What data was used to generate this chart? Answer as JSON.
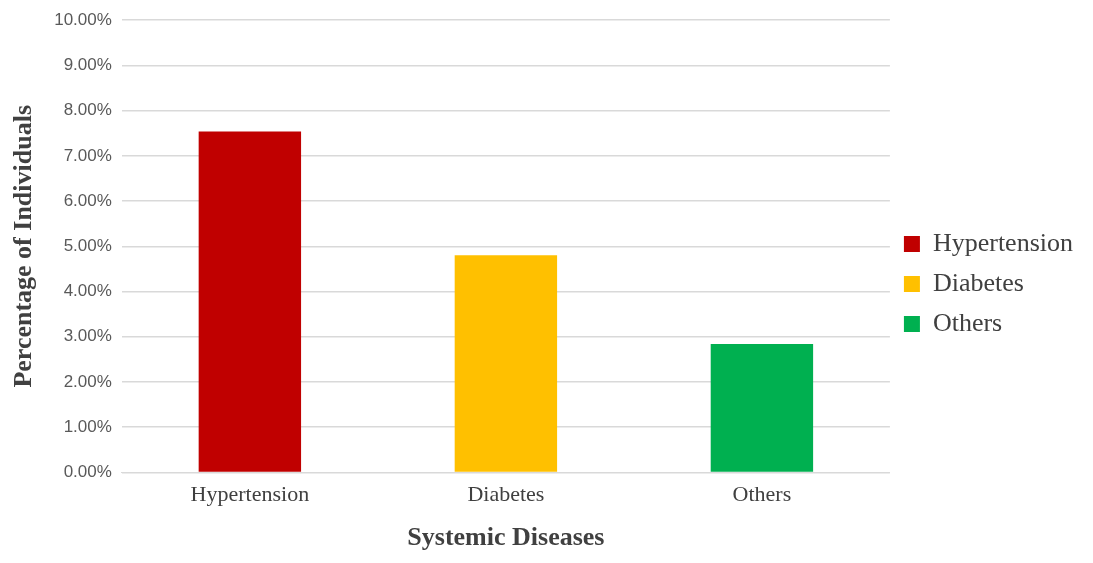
{
  "chart_data": {
    "type": "bar",
    "xlabel": "Systemic Diseases",
    "ylabel": "Percentage of Individuals",
    "categories": [
      "Hypertension",
      "Diabetes",
      "Others"
    ],
    "series": [
      {
        "name": "Hypertension",
        "color": "#c00000",
        "values": [
          7.54,
          null,
          null
        ]
      },
      {
        "name": "Diabetes",
        "color": "#ffc000",
        "values": [
          null,
          4.8,
          null
        ]
      },
      {
        "name": "Others",
        "color": "#00b050",
        "values": [
          null,
          null,
          2.84
        ]
      }
    ],
    "ylim": [
      0,
      10
    ],
    "yticks": [
      {
        "value": 0,
        "label": "0.00%"
      },
      {
        "value": 1,
        "label": "1.00%"
      },
      {
        "value": 2,
        "label": "2.00%"
      },
      {
        "value": 3,
        "label": "3.00%"
      },
      {
        "value": 4,
        "label": "4.00%"
      },
      {
        "value": 5,
        "label": "5.00%"
      },
      {
        "value": 6,
        "label": "6.00%"
      },
      {
        "value": 7,
        "label": "7.00%"
      },
      {
        "value": 8,
        "label": "8.00%"
      },
      {
        "value": 9,
        "label": "9.00%"
      },
      {
        "value": 10,
        "label": "10.00%"
      }
    ],
    "grid": "y",
    "legend": "right"
  }
}
